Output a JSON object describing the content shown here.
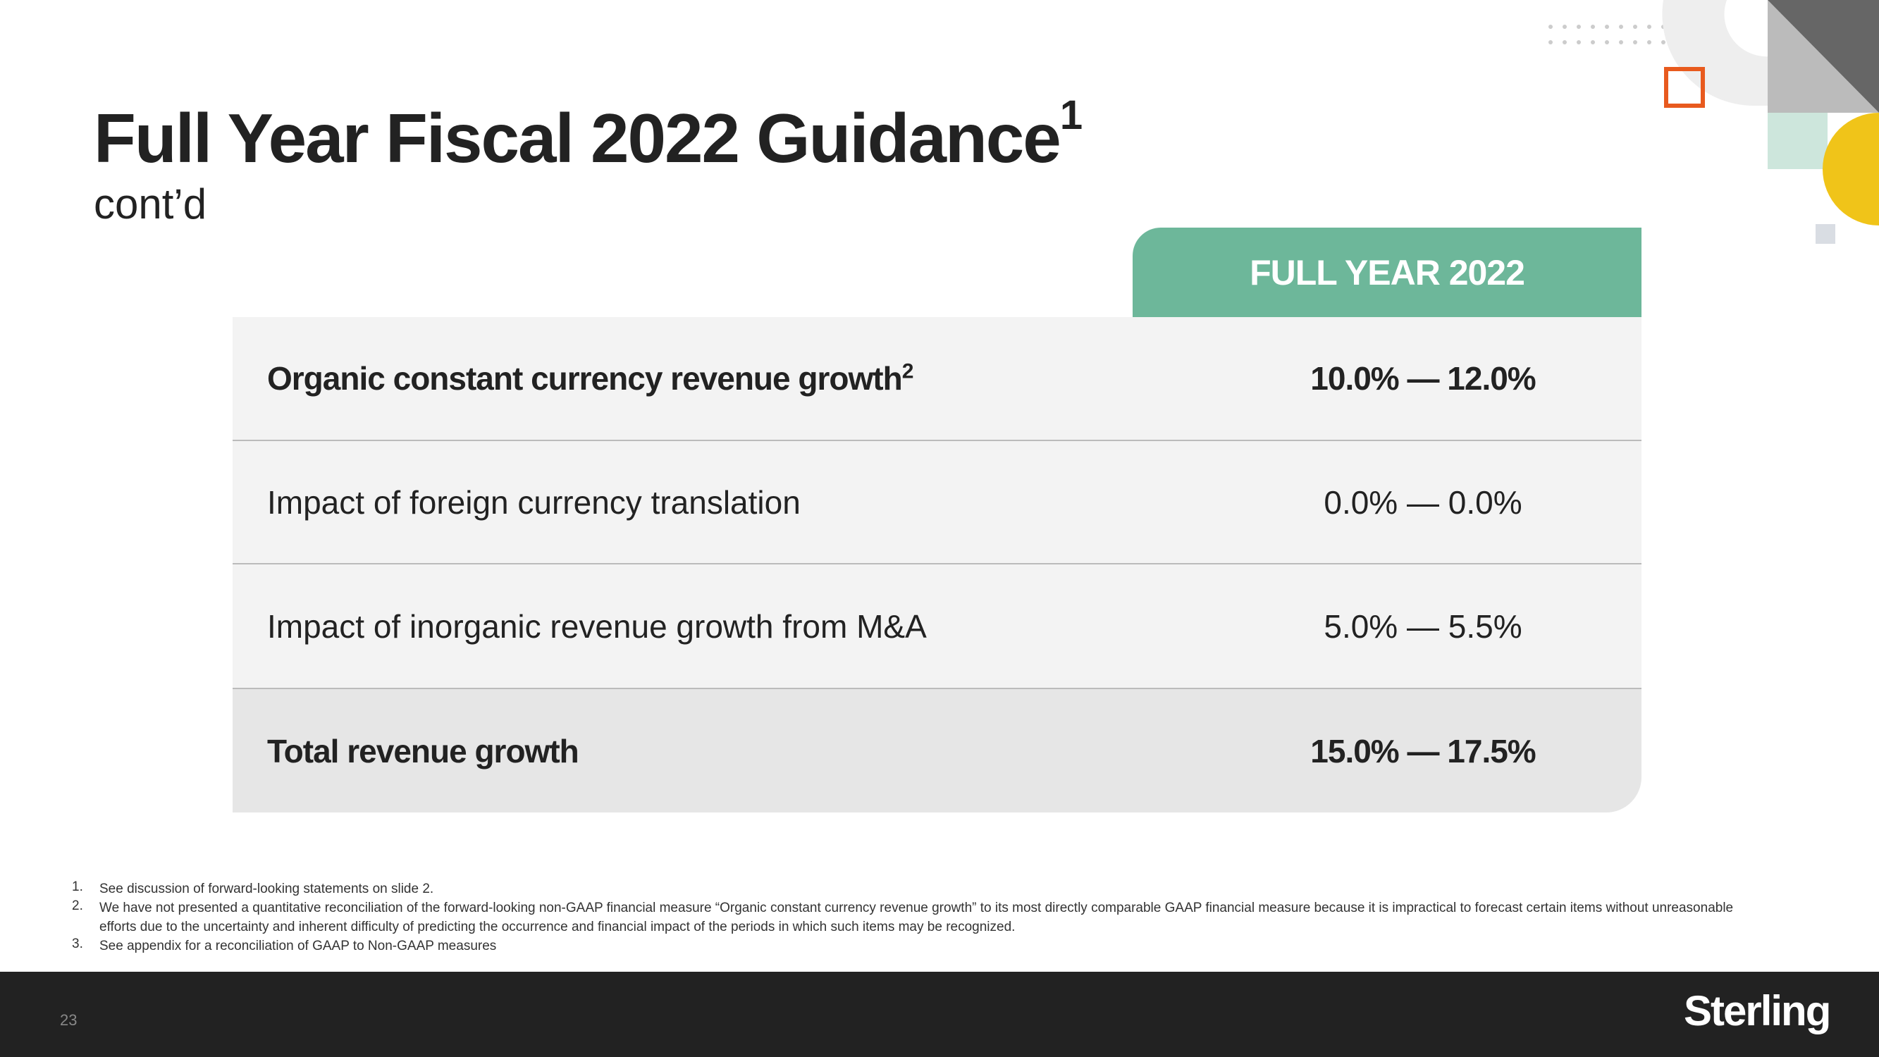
{
  "header": {
    "title": "Full Year Fiscal 2022 Guidance",
    "title_superscript": "1",
    "subtitle": "cont’d"
  },
  "table": {
    "column_header": "FULL YEAR 2022",
    "rows": [
      {
        "label": "Organic constant currency revenue growth",
        "superscript": "2",
        "value": "10.0% — 12.0%"
      },
      {
        "label": "Impact of foreign currency translation",
        "value": "0.0% — 0.0%"
      },
      {
        "label": "Impact of inorganic revenue growth from M&A",
        "value": "5.0% — 5.5%"
      },
      {
        "label": "Total revenue growth",
        "value": "15.0% — 17.5%"
      }
    ]
  },
  "footnotes": [
    {
      "number": "1.",
      "text": "See discussion of forward-looking statements on slide 2."
    },
    {
      "number": "2.",
      "text": "We have not presented a quantitative reconciliation of the forward-looking non-GAAP financial measure “Organic constant currency revenue growth” to its most directly comparable GAAP financial measure because it is impractical to forecast certain items without unreasonable efforts due to the uncertainty and inherent difficulty of predicting the occurrence and financial impact of the periods in which such items may be recognized."
    },
    {
      "number": "3.",
      "text": "See appendix for a reconciliation of GAAP to Non-GAAP measures"
    }
  ],
  "footer": {
    "page_number": "23",
    "logo": "Sterling"
  }
}
